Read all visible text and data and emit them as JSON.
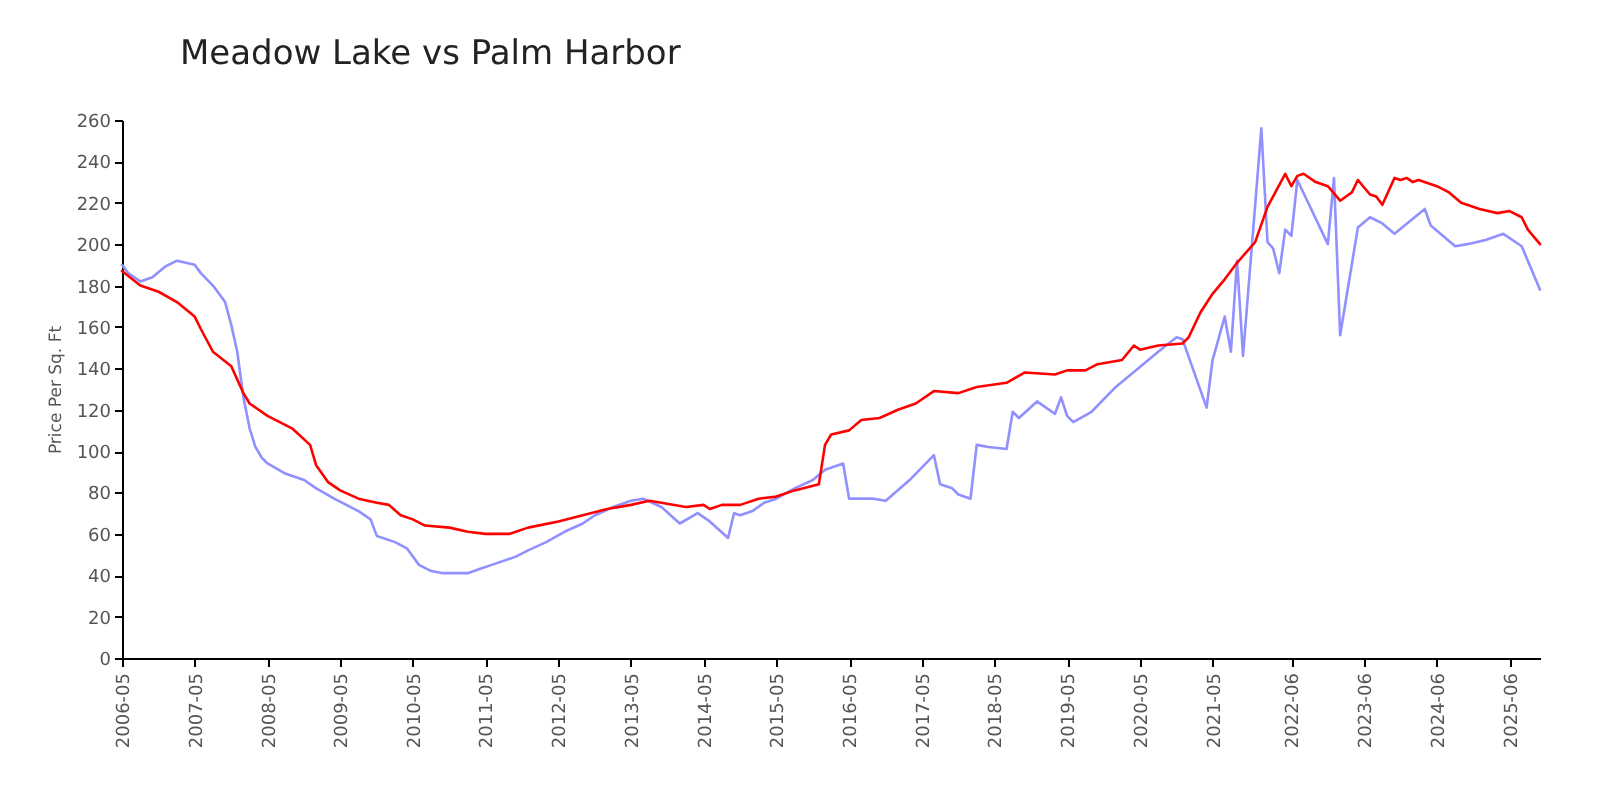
{
  "chart_data": {
    "type": "line",
    "title": "Meadow Lake vs Palm Harbor",
    "ylabel": "Price Per Sq. Ft",
    "xlim": [
      "2006-05",
      "2025-11"
    ],
    "xticks": [
      "2006-05",
      "2007-05",
      "2008-05",
      "2009-05",
      "2010-05",
      "2011-05",
      "2012-05",
      "2013-05",
      "2014-05",
      "2015-05",
      "2016-05",
      "2017-05",
      "2018-05",
      "2019-05",
      "2020-05",
      "2021-05",
      "2022-06",
      "2023-06",
      "2024-06",
      "2025-06"
    ],
    "ylim": [
      0,
      260
    ],
    "yticks": [
      0,
      20,
      40,
      60,
      80,
      100,
      120,
      140,
      160,
      180,
      200,
      220,
      240,
      260
    ],
    "grid": false,
    "line_style": "solid",
    "series": [
      {
        "color": "#9090ff",
        "x": [
          "2006-05",
          "2006-06",
          "2006-08",
          "2006-10",
          "2006-12",
          "2007-02",
          "2007-05",
          "2007-06",
          "2007-08",
          "2007-10",
          "2007-11",
          "2007-12",
          "2008-01",
          "2008-02",
          "2008-03",
          "2008-04",
          "2008-05",
          "2008-08",
          "2008-11",
          "2009-01",
          "2009-04",
          "2009-06",
          "2009-08",
          "2009-10",
          "2009-11",
          "2010-02",
          "2010-04",
          "2010-06",
          "2010-08",
          "2010-10",
          "2011-02",
          "2011-04",
          "2011-06",
          "2011-10",
          "2011-12",
          "2012-03",
          "2012-06",
          "2012-09",
          "2012-11",
          "2013-02",
          "2013-05",
          "2013-07",
          "2013-10",
          "2014-01",
          "2014-04",
          "2014-06",
          "2014-09",
          "2014-10",
          "2014-11",
          "2015-01",
          "2015-03",
          "2015-05",
          "2015-08",
          "2015-11",
          "2016-01",
          "2016-04",
          "2016-05",
          "2016-09",
          "2016-11",
          "2017-03",
          "2017-07",
          "2017-08",
          "2017-10",
          "2017-11",
          "2018-01",
          "2018-02",
          "2018-04",
          "2018-07",
          "2018-08",
          "2018-09",
          "2018-12",
          "2019-03",
          "2019-04",
          "2019-05",
          "2019-06",
          "2019-09",
          "2020-01",
          "2020-08",
          "2020-11",
          "2020-12",
          "2021-04",
          "2021-05",
          "2021-07",
          "2021-08",
          "2021-09",
          "2021-10",
          "2022-01",
          "2022-02",
          "2022-03",
          "2022-04",
          "2022-05",
          "2022-06",
          "2022-07",
          "2022-12",
          "2023-01",
          "2023-02",
          "2023-05",
          "2023-07",
          "2023-09",
          "2023-11",
          "2024-04",
          "2024-05",
          "2024-09",
          "2024-11",
          "2025-02",
          "2025-05",
          "2025-08",
          "2025-11"
        ],
        "values": [
          190,
          186,
          182,
          184,
          189,
          192,
          190,
          186,
          180,
          172,
          161,
          148,
          126,
          111,
          102,
          97,
          94,
          89,
          86,
          82,
          77,
          74,
          71,
          67,
          59,
          56,
          53,
          45,
          42,
          41,
          41,
          43,
          45,
          49,
          52,
          56,
          61,
          65,
          69,
          73,
          76,
          77,
          73,
          65,
          70,
          66,
          58,
          70,
          69,
          71,
          75,
          77,
          82,
          86,
          91,
          94,
          77,
          77,
          76,
          86,
          98,
          84,
          82,
          79,
          77,
          103,
          102,
          101,
          119,
          116,
          124,
          118,
          126,
          117,
          114,
          119,
          131,
          148,
          155,
          154,
          121,
          144,
          165,
          148,
          192,
          146,
          256,
          201,
          198,
          186,
          207,
          204,
          231,
          200,
          232,
          156,
          208,
          213,
          210,
          205,
          217,
          209,
          199,
          200,
          202,
          205,
          199,
          178
        ]
      },
      {
        "color": "#ff0000",
        "x": [
          "2006-05",
          "2006-08",
          "2006-11",
          "2007-02",
          "2007-05",
          "2007-06",
          "2007-08",
          "2007-11",
          "2008-01",
          "2008-02",
          "2008-05",
          "2008-09",
          "2008-12",
          "2009-01",
          "2009-03",
          "2009-05",
          "2009-08",
          "2009-11",
          "2010-01",
          "2010-03",
          "2010-05",
          "2010-07",
          "2010-11",
          "2011-02",
          "2011-05",
          "2011-09",
          "2011-12",
          "2012-05",
          "2012-09",
          "2013-01",
          "2013-05",
          "2013-08",
          "2013-10",
          "2014-02",
          "2014-05",
          "2014-06",
          "2014-08",
          "2014-11",
          "2015-02",
          "2015-05",
          "2015-08",
          "2015-12",
          "2016-01",
          "2016-02",
          "2016-05",
          "2016-07",
          "2016-10",
          "2017-01",
          "2017-04",
          "2017-07",
          "2017-11",
          "2018-02",
          "2018-07",
          "2018-10",
          "2019-03",
          "2019-05",
          "2019-08",
          "2019-10",
          "2020-02",
          "2020-04",
          "2020-05",
          "2020-08",
          "2020-12",
          "2021-01",
          "2021-03",
          "2021-05",
          "2021-07",
          "2021-09",
          "2021-12",
          "2022-02",
          "2022-05",
          "2022-06",
          "2022-07",
          "2022-08",
          "2022-10",
          "2022-12",
          "2023-02",
          "2023-04",
          "2023-05",
          "2023-07",
          "2023-08",
          "2023-09",
          "2023-11",
          "2023-12",
          "2024-01",
          "2024-02",
          "2024-03",
          "2024-06",
          "2024-08",
          "2024-10",
          "2025-01",
          "2025-04",
          "2025-06",
          "2025-08",
          "2025-09",
          "2025-11"
        ],
        "values": [
          187,
          180,
          177,
          172,
          165,
          159,
          148,
          141,
          128,
          123,
          117,
          111,
          103,
          93,
          85,
          81,
          77,
          75,
          74,
          69,
          67,
          64,
          63,
          61,
          60,
          60,
          63,
          66,
          69,
          72,
          74,
          76,
          75,
          73,
          74,
          72,
          74,
          74,
          77,
          78,
          81,
          84,
          103,
          108,
          110,
          115,
          116,
          120,
          123,
          129,
          128,
          131,
          133,
          138,
          137,
          139,
          139,
          142,
          144,
          151,
          149,
          151,
          152,
          155,
          167,
          176,
          183,
          191,
          201,
          218,
          234,
          228,
          233,
          234,
          230,
          228,
          221,
          225,
          231,
          224,
          223,
          219,
          232,
          231,
          232,
          230,
          231,
          228,
          225,
          220,
          217,
          215,
          216,
          213,
          207,
          200
        ]
      }
    ]
  }
}
